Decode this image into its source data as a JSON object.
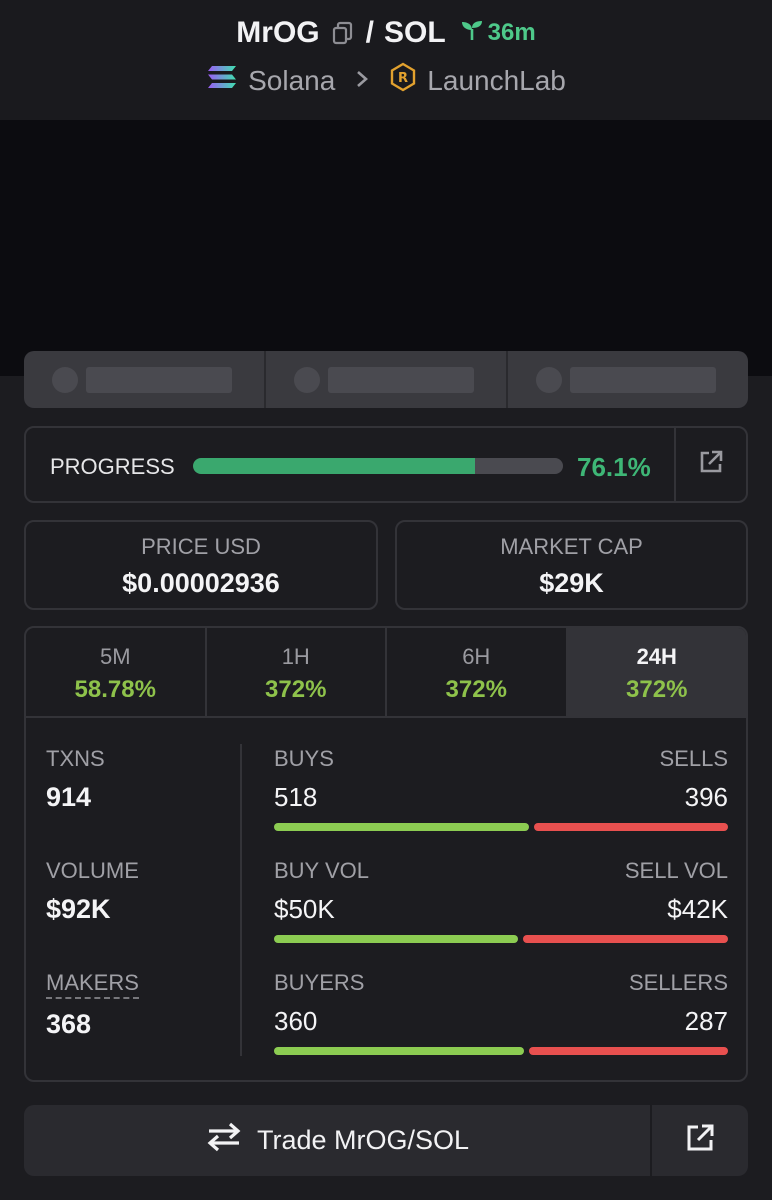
{
  "header": {
    "token": "MrOG",
    "separator": "/",
    "quote": "SOL",
    "age": "36m",
    "chain": "Solana",
    "dex": "LaunchLab"
  },
  "progress": {
    "label": "PROGRESS",
    "value_text": "76.1%",
    "fraction": 0.761
  },
  "stats": {
    "price_label": "PRICE USD",
    "price_value": "$0.00002936",
    "mcap_label": "MARKET CAP",
    "mcap_value": "$29K"
  },
  "periods": [
    {
      "label": "5M",
      "change": "58.78%"
    },
    {
      "label": "1H",
      "change": "372%"
    },
    {
      "label": "6H",
      "change": "372%"
    },
    {
      "label": "24H",
      "change": "372%",
      "active": true
    }
  ],
  "metrics": {
    "txns_label": "TXNS",
    "txns_value": "914",
    "volume_label": "VOLUME",
    "volume_value": "$92K",
    "makers_label": "MAKERS",
    "makers_value": "368"
  },
  "splits": {
    "buys": {
      "left_label": "BUYS",
      "right_label": "SELLS",
      "left_value": "518",
      "right_value": "396",
      "left_share": 0.567
    },
    "vol": {
      "left_label": "BUY VOL",
      "right_label": "SELL VOL",
      "left_value": "$50K",
      "right_value": "$42K",
      "left_share": 0.543
    },
    "makers": {
      "left_label": "BUYERS",
      "right_label": "SELLERS",
      "left_value": "360",
      "right_value": "287",
      "left_share": 0.556
    }
  },
  "trade": {
    "label": "Trade MrOG/SOL"
  },
  "colors": {
    "positive": "#8ec24b",
    "progress": "#3aa86e",
    "buy_bar": "#8ccc52",
    "sell_bar": "#e8504f"
  }
}
